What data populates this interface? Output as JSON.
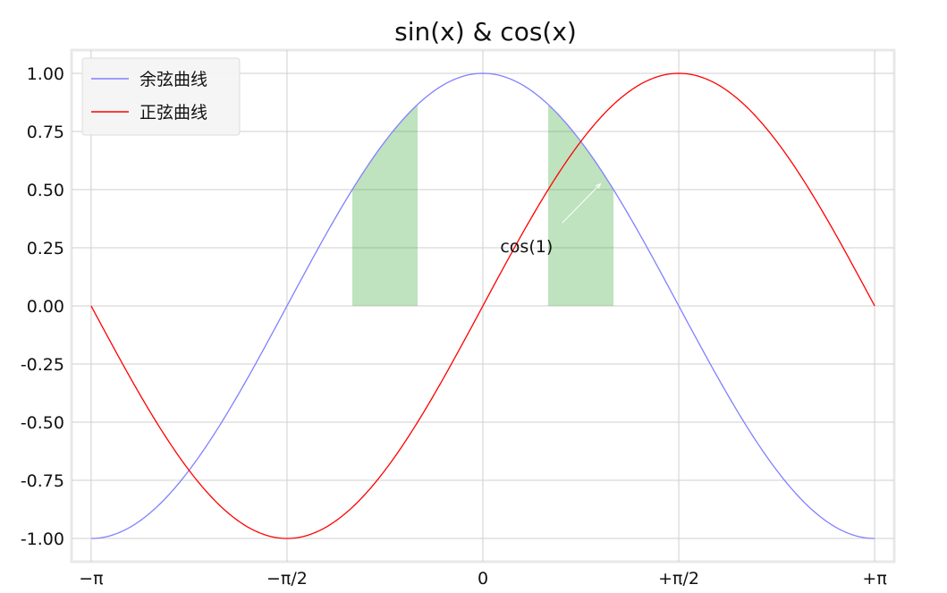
{
  "chart_data": {
    "type": "line",
    "title": "sin(x) & cos(x)",
    "xlabel": "",
    "ylabel": "",
    "xlim": [
      -3.2987,
      3.2987
    ],
    "ylim": [
      -1.1,
      1.1
    ],
    "grid": true,
    "legend_position": "upper-left",
    "x_ticks": [
      {
        "value": -3.14159,
        "label": "−π"
      },
      {
        "value": -1.5708,
        "label": "−π/2"
      },
      {
        "value": 0,
        "label": "0"
      },
      {
        "value": 1.5708,
        "label": "+π/2"
      },
      {
        "value": 3.14159,
        "label": "+π"
      }
    ],
    "y_ticks": [
      {
        "value": 1.0,
        "label": "1.00"
      },
      {
        "value": 0.75,
        "label": "0.75"
      },
      {
        "value": 0.5,
        "label": "0.50"
      },
      {
        "value": 0.25,
        "label": "0.25"
      },
      {
        "value": 0.0,
        "label": "0.00"
      },
      {
        "value": -0.25,
        "label": "-0.25"
      },
      {
        "value": -0.5,
        "label": "-0.50"
      },
      {
        "value": -0.75,
        "label": "-0.75"
      },
      {
        "value": -1.0,
        "label": "-1.00"
      }
    ],
    "series": [
      {
        "name": "余弦曲线",
        "function": "cos",
        "x_range": [
          -3.14159,
          3.14159
        ],
        "color": "#8080ff"
      },
      {
        "name": "正弦曲线",
        "function": "sin",
        "x_range": [
          -3.14159,
          3.14159
        ],
        "color": "#ff0000"
      }
    ],
    "fills": [
      {
        "x_range": [
          -1.0472,
          -0.5236
        ],
        "upper": "cos",
        "lower": 0,
        "color": "#2ca02c",
        "alpha": 0.3
      },
      {
        "x_range": [
          0.5236,
          1.0472
        ],
        "upper": "cos",
        "lower": 0,
        "color": "#2ca02c",
        "alpha": 0.3
      }
    ],
    "annotations": [
      {
        "text": "cos(1)",
        "xy": [
          1.0,
          0.5403
        ],
        "xytext": [
          0.35,
          0.23
        ],
        "arrow": true
      }
    ]
  }
}
